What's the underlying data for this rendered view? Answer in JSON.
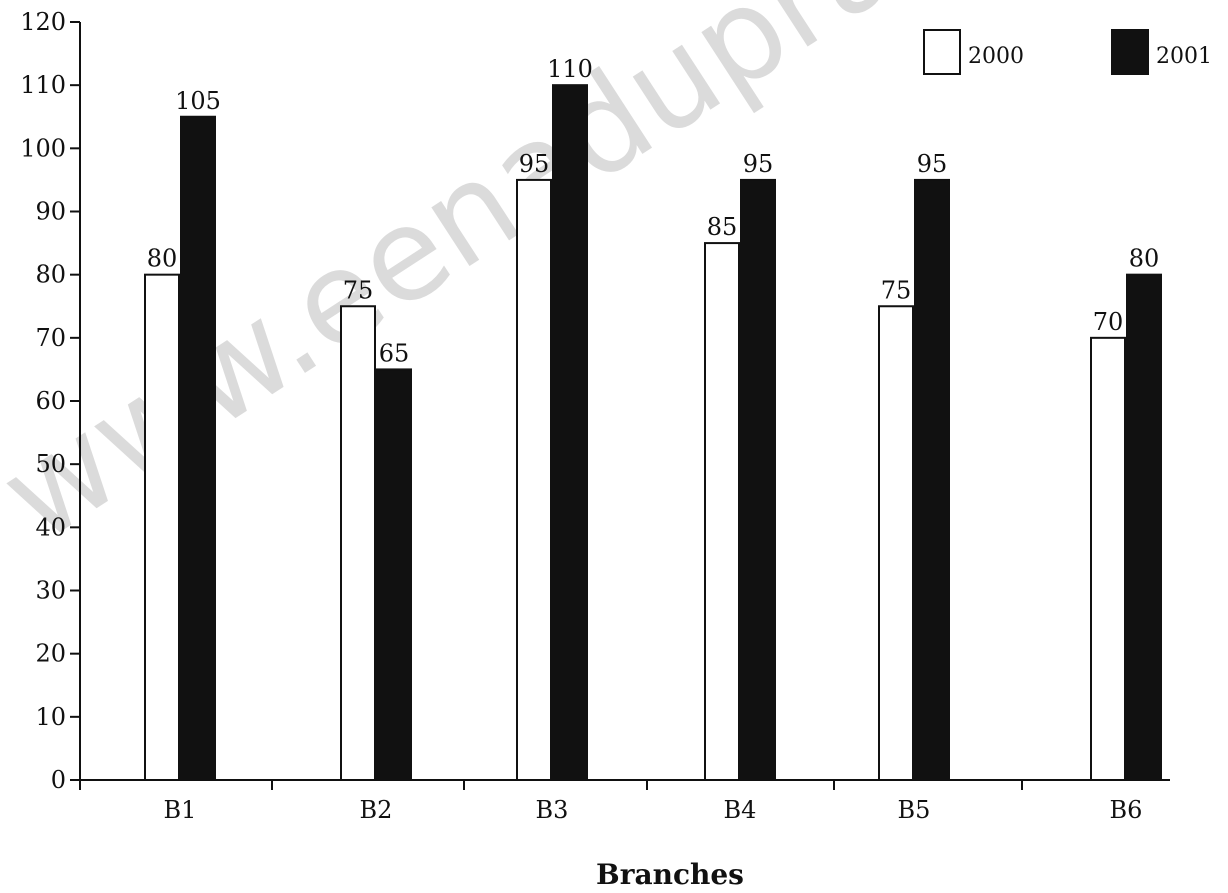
{
  "chart_data": {
    "type": "bar",
    "categories": [
      "B1",
      "B2",
      "B3",
      "B4",
      "B5",
      "B6"
    ],
    "series": [
      {
        "name": "2000",
        "values": [
          80,
          75,
          95,
          85,
          75,
          70
        ],
        "color": "#ffffff"
      },
      {
        "name": "2001",
        "values": [
          105,
          65,
          110,
          95,
          95,
          80
        ],
        "color": "#111111"
      }
    ],
    "xlabel": "Branches",
    "ylabel": "",
    "ylim": [
      0,
      120
    ],
    "yticks": [
      0,
      10,
      20,
      30,
      40,
      50,
      60,
      70,
      80,
      90,
      100,
      110,
      120
    ],
    "grid": false,
    "legend_position": "top-right",
    "data_labels": true
  },
  "watermark": "www.eenadupratibha"
}
